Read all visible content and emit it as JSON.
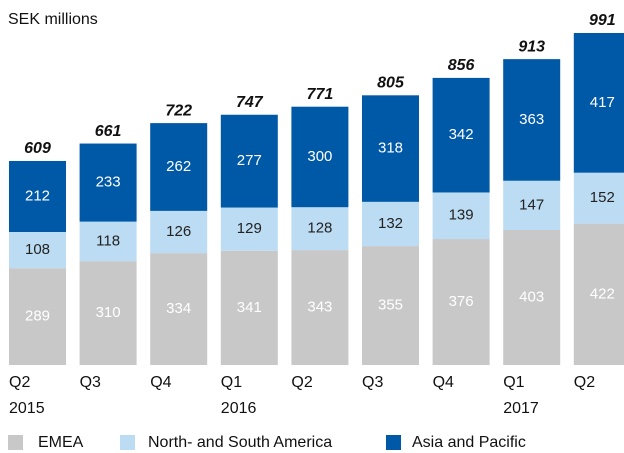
{
  "chart_data": {
    "type": "stacked_bar",
    "title": "SEK millions",
    "categories": [
      [
        "Q2",
        "2015"
      ],
      [
        "Q3"
      ],
      [
        "Q4"
      ],
      [
        "Q1",
        "2016"
      ],
      [
        "Q2"
      ],
      [
        "Q3"
      ],
      [
        "Q4"
      ],
      [
        "Q1",
        "2017"
      ],
      [
        "Q2"
      ]
    ],
    "series": [
      {
        "name": "EMEA",
        "color": "#c8c8c8",
        "values": [
          289,
          310,
          334,
          341,
          343,
          355,
          376,
          403,
          422
        ]
      },
      {
        "name": "North- and South America",
        "color": "#bcdcf3",
        "values": [
          108,
          118,
          126,
          129,
          128,
          132,
          139,
          147,
          152
        ]
      },
      {
        "name": "Asia and Pacific",
        "color": "#0059a6",
        "values": [
          212,
          233,
          262,
          277,
          300,
          318,
          342,
          363,
          417
        ]
      }
    ],
    "totals": [
      609,
      661,
      722,
      747,
      771,
      805,
      856,
      913,
      991
    ]
  }
}
